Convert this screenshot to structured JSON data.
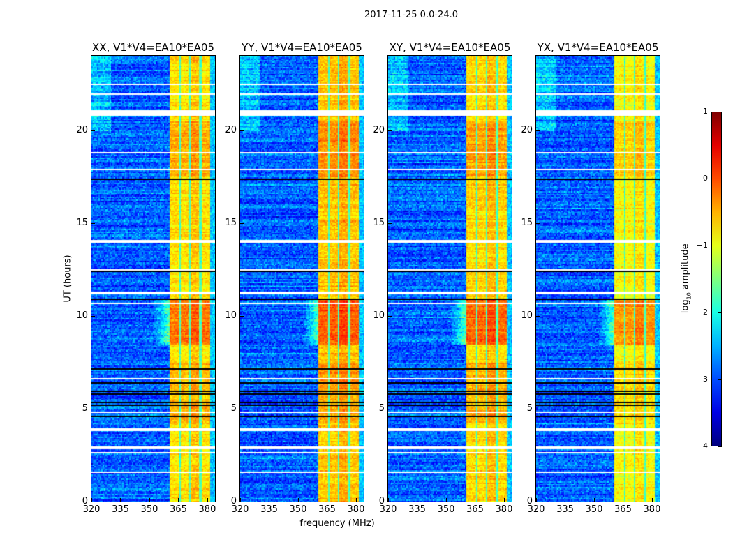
{
  "figure": {
    "suptitle": "2017-11-25 0.0-24.0",
    "xlabel": "frequency (MHz)",
    "ylabel": "UT (hours)"
  },
  "chart_data": {
    "type": "heatmap",
    "colormap": "jet",
    "xlim": [
      320,
      384
    ],
    "ylim": [
      0,
      24
    ],
    "xticks": [
      "320",
      "335",
      "350",
      "365",
      "380"
    ],
    "xtick_values": [
      320,
      335,
      350,
      365,
      380
    ],
    "yticks": [
      "0",
      "5",
      "10",
      "15",
      "20"
    ],
    "ytick_values": [
      0,
      5,
      10,
      15,
      20
    ],
    "panels": [
      {
        "title": "XX, V1*V4=EA10*EA05",
        "band_level": 0.0
      },
      {
        "title": "YY, V1*V4=EA10*EA05",
        "band_level": 0.15
      },
      {
        "title": "XY, V1*V4=EA10*EA05",
        "band_level": 0.05
      },
      {
        "title": "YX, V1*V4=EA10*EA05",
        "band_level": -0.15
      }
    ],
    "background_log_amplitude": -2.9,
    "rfi_band_MHz": [
      360,
      381
    ],
    "rfi_notches_MHz": [
      365.5,
      370.5,
      376
    ],
    "rfi_strong_hours": [
      [
        8.5,
        11.0
      ],
      [
        17.5,
        20.5
      ],
      [
        4.3,
        7.5
      ]
    ],
    "flagged_hours": [
      [
        22.45,
        22.52
      ],
      [
        21.95,
        22.0
      ],
      [
        21.78,
        21.82
      ],
      [
        21.62,
        21.66
      ],
      [
        20.82,
        21.09
      ],
      [
        18.8,
        18.85
      ],
      [
        17.9,
        17.95
      ],
      [
        14.0,
        14.12
      ],
      [
        12.5,
        12.55
      ],
      [
        11.2,
        11.38
      ],
      [
        10.7,
        10.76
      ],
      [
        9.0,
        9.04
      ],
      [
        6.6,
        6.72
      ],
      [
        4.8,
        4.86
      ],
      [
        3.83,
        4.0
      ],
      [
        2.85,
        3.0
      ],
      [
        2.62,
        2.7
      ],
      [
        1.57,
        1.68
      ]
    ],
    "dark_rows_hours": [
      20.6,
      20.3,
      19.9,
      19.6,
      19.25,
      17.4,
      16.3,
      15.2,
      12.45,
      10.9,
      7.2,
      6.4,
      6.2,
      6.0,
      5.8,
      5.6,
      5.4,
      5.2,
      5.0,
      4.6,
      2.0,
      1.8
    ],
    "colorbar": {
      "label_main": "log",
      "label_sub": "10",
      "label_rest": " amplitude",
      "clim": [
        -4,
        1
      ],
      "ticks": [
        "1",
        "0",
        "−1",
        "−2",
        "−3",
        "−4"
      ],
      "tick_values": [
        1,
        0,
        -1,
        -2,
        -3,
        -4
      ]
    }
  }
}
